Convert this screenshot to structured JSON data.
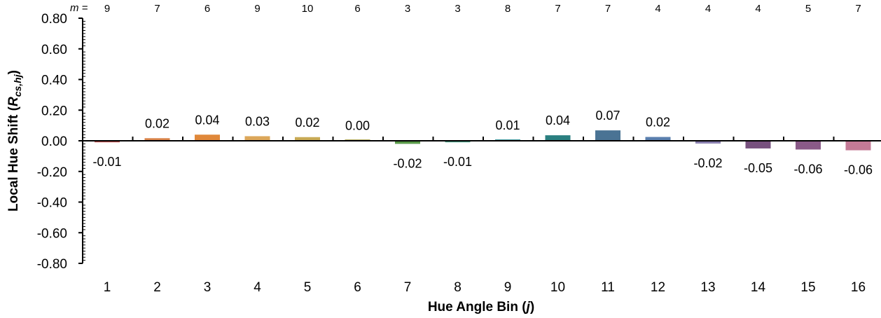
{
  "chart_data": {
    "type": "bar",
    "xlabel": "Hue Angle Bin (j)",
    "xlabel_parts": {
      "pre": "Hue Angle Bin (",
      "var": "j",
      "post": ")"
    },
    "ylabel": "Local Hue Shift (R cs,hj)",
    "ylabel_parts": {
      "pre": "Local Hue Shift (",
      "var": "R",
      "sub": "cs,hj",
      "post": ")"
    },
    "ylim": [
      -0.8,
      0.8
    ],
    "yticks": [
      "0.80",
      "0.60",
      "0.40",
      "0.20",
      "0.00",
      "-0.20",
      "-0.40",
      "-0.60",
      "-0.80"
    ],
    "ytick_values": [
      0.8,
      0.6,
      0.4,
      0.2,
      0.0,
      -0.2,
      -0.4,
      -0.6,
      -0.8
    ],
    "categories": [
      "1",
      "2",
      "3",
      "4",
      "5",
      "6",
      "7",
      "8",
      "9",
      "10",
      "11",
      "12",
      "13",
      "14",
      "15",
      "16"
    ],
    "values": [
      -0.01,
      0.017,
      0.04,
      0.03,
      0.024,
      0.002,
      -0.02,
      -0.01,
      0.005,
      0.036,
      0.068,
      0.025,
      -0.018,
      -0.05,
      -0.057,
      -0.062
    ],
    "data_labels": [
      "-0.01",
      "0.02",
      "0.04",
      "0.03",
      "0.02",
      "0.00",
      "-0.02",
      "-0.01",
      "0.01",
      "0.04",
      "0.07",
      "0.02",
      "-0.02",
      "-0.05",
      "-0.06",
      "-0.06"
    ],
    "m_prefix": "m =",
    "m_values": [
      "9",
      "7",
      "6",
      "9",
      "10",
      "6",
      "3",
      "3",
      "8",
      "7",
      "7",
      "4",
      "4",
      "4",
      "5",
      "7"
    ],
    "colors": [
      "#c0504d",
      "#d9844a",
      "#e0883a",
      "#dca75a",
      "#c8aa55",
      "#b8b060",
      "#5a9a4a",
      "#4aa087",
      "#3c9aa0",
      "#2a7f80",
      "#4a7394",
      "#5a7fae",
      "#8a80b0",
      "#77517e",
      "#8a5a88",
      "#c47a96"
    ],
    "grid": false,
    "legend": "none"
  }
}
